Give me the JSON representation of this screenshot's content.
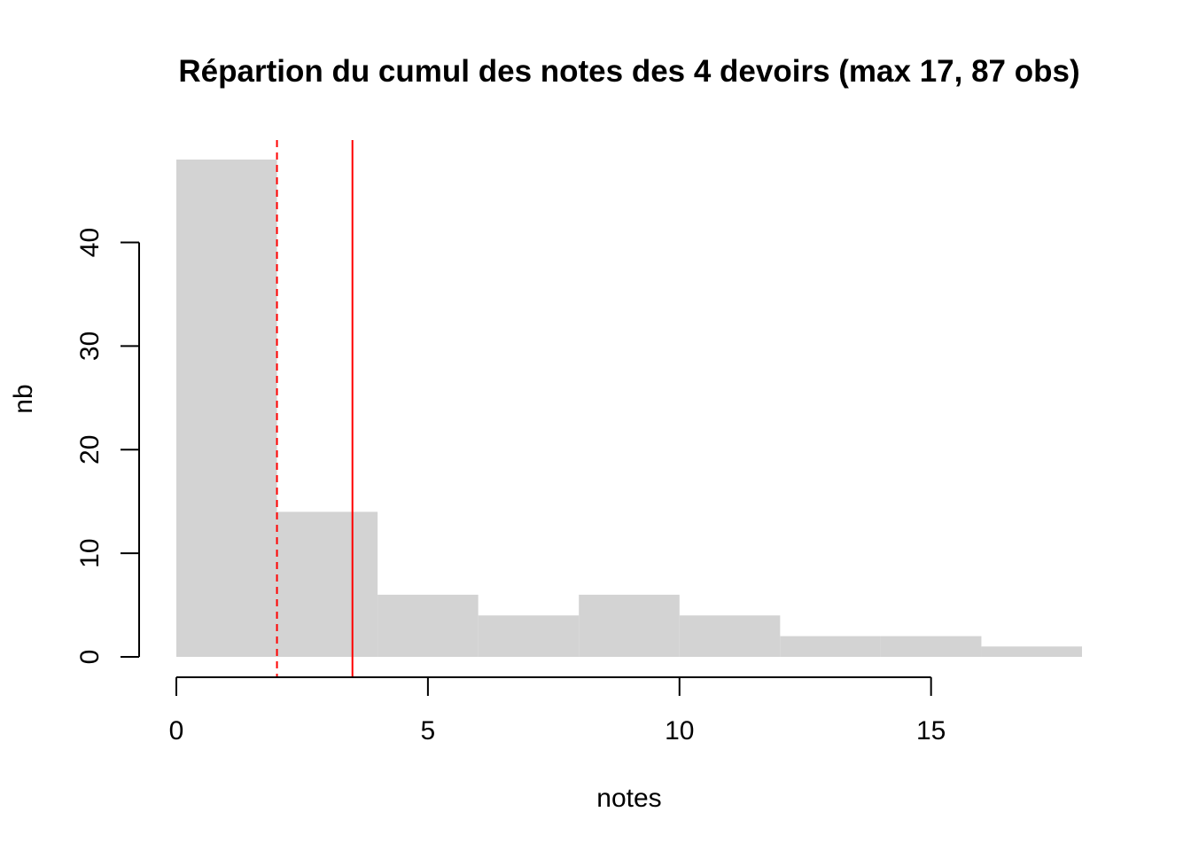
{
  "chart_data": {
    "type": "bar",
    "title": "Répartion du cumul des notes des 4 devoirs (max 17, 87 obs)",
    "xlabel": "notes",
    "ylabel": "nb",
    "bins": [
      {
        "from": 0,
        "to": 2,
        "count": 48
      },
      {
        "from": 2,
        "to": 4,
        "count": 14
      },
      {
        "from": 4,
        "to": 6,
        "count": 6
      },
      {
        "from": 6,
        "to": 8,
        "count": 4
      },
      {
        "from": 8,
        "to": 10,
        "count": 6
      },
      {
        "from": 10,
        "to": 12,
        "count": 4
      },
      {
        "from": 12,
        "to": 14,
        "count": 2
      },
      {
        "from": 14,
        "to": 16,
        "count": 2
      },
      {
        "from": 16,
        "to": 18,
        "count": 1
      }
    ],
    "xlim": [
      0,
      18
    ],
    "ylim": [
      0,
      48
    ],
    "xticks": [
      0,
      5,
      10,
      15
    ],
    "xtick_labels": [
      "0",
      "5",
      "10",
      "15"
    ],
    "yticks": [
      0,
      10,
      20,
      30,
      40
    ],
    "ytick_labels": [
      "0",
      "10",
      "20",
      "30",
      "40"
    ],
    "reference_lines": [
      {
        "x": 2,
        "style": "dashed",
        "color": "#ff0000"
      },
      {
        "x": 3.5,
        "style": "solid",
        "color": "#ff0000"
      }
    ],
    "bar_color": "#d3d3d3",
    "grid": false,
    "legend": "none"
  }
}
